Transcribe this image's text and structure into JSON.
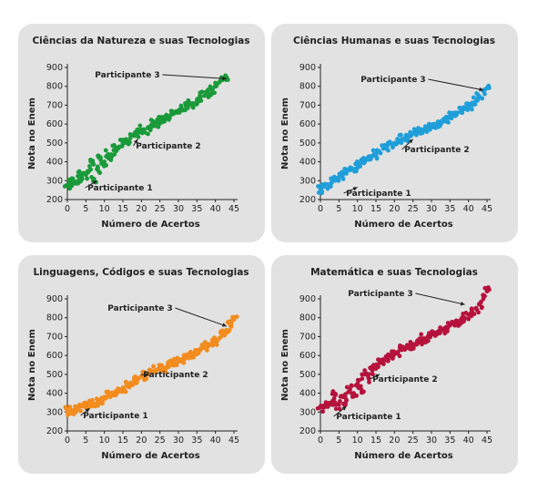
{
  "chart_data": [
    {
      "type": "scatter",
      "title": "Ciências da Natureza e suas Tecnologias",
      "xlabel": "Número de Acertos",
      "ylabel": "Nota no Enem",
      "xlim": [
        0,
        45
      ],
      "ylim": [
        200,
        900
      ],
      "xticks": [
        "0",
        "5",
        "10",
        "15",
        "20",
        "25",
        "30",
        "35",
        "40",
        "45"
      ],
      "yticks": [
        "200",
        "300",
        "400",
        "500",
        "600",
        "700",
        "800",
        "900"
      ],
      "color": "#1a9a3a",
      "series": [
        {
          "points": [
            [
              0,
              275
            ],
            [
              1,
              285
            ],
            [
              2,
              295
            ],
            [
              3,
              300
            ],
            [
              3,
              345
            ],
            [
              4,
              310
            ],
            [
              5,
              330
            ],
            [
              6,
              355
            ],
            [
              7,
              300
            ],
            [
              7,
              390
            ],
            [
              8,
              360
            ],
            [
              9,
              410
            ],
            [
              10,
              400
            ],
            [
              11,
              440
            ],
            [
              12,
              430
            ],
            [
              13,
              470
            ],
            [
              14,
              480
            ],
            [
              15,
              500
            ],
            [
              16,
              500
            ],
            [
              17,
              525
            ],
            [
              18,
              545
            ],
            [
              19,
              550
            ],
            [
              20,
              570
            ],
            [
              21,
              555
            ],
            [
              22,
              585
            ],
            [
              23,
              600
            ],
            [
              24,
              605
            ],
            [
              25,
              615
            ],
            [
              26,
              625
            ],
            [
              27,
              630
            ],
            [
              28,
              650
            ],
            [
              29,
              660
            ],
            [
              30,
              670
            ],
            [
              31,
              680
            ],
            [
              32,
              695
            ],
            [
              33,
              705
            ],
            [
              34,
              710
            ],
            [
              35,
              725
            ],
            [
              36,
              745
            ],
            [
              37,
              750
            ],
            [
              38,
              765
            ],
            [
              39,
              780
            ],
            [
              40,
              800
            ],
            [
              41,
              820
            ],
            [
              42,
              835
            ],
            [
              43,
              848
            ]
          ]
        }
      ],
      "annotations": [
        {
          "label": "Participante 1",
          "x": 8,
          "y": 300
        },
        {
          "label": "Participante 2",
          "x": 19,
          "y": 520
        },
        {
          "label": "Participante 3",
          "x": 43,
          "y": 840
        }
      ]
    },
    {
      "type": "scatter",
      "title": "Ciências Humanas e suas Tecnologias",
      "xlabel": "Número de Acertos",
      "ylabel": "Nota no Enem",
      "xlim": [
        0,
        45
      ],
      "ylim": [
        200,
        900
      ],
      "xticks": [
        "0",
        "5",
        "10",
        "15",
        "20",
        "25",
        "30",
        "35",
        "40",
        "45"
      ],
      "yticks": [
        "200",
        "300",
        "400",
        "500",
        "600",
        "700",
        "800",
        "900"
      ],
      "color": "#1f9ed9",
      "series": [
        {
          "points": [
            [
              0,
              255
            ],
            [
              1,
              270
            ],
            [
              2,
              280
            ],
            [
              3,
              290
            ],
            [
              4,
              300
            ],
            [
              5,
              320
            ],
            [
              6,
              330
            ],
            [
              7,
              350
            ],
            [
              8,
              355
            ],
            [
              9,
              360
            ],
            [
              10,
              385
            ],
            [
              11,
              395
            ],
            [
              12,
              400
            ],
            [
              13,
              420
            ],
            [
              14,
              430
            ],
            [
              15,
              440
            ],
            [
              16,
              450
            ],
            [
              17,
              470
            ],
            [
              18,
              480
            ],
            [
              19,
              495
            ],
            [
              20,
              500
            ],
            [
              21,
              510
            ],
            [
              22,
              520
            ],
            [
              23,
              530
            ],
            [
              24,
              540
            ],
            [
              25,
              550
            ],
            [
              26,
              560
            ],
            [
              27,
              565
            ],
            [
              28,
              570
            ],
            [
              29,
              580
            ],
            [
              30,
              590
            ],
            [
              31,
              600
            ],
            [
              32,
              610
            ],
            [
              33,
              620
            ],
            [
              34,
              630
            ],
            [
              35,
              640
            ],
            [
              36,
              650
            ],
            [
              37,
              660
            ],
            [
              38,
              670
            ],
            [
              39,
              680
            ],
            [
              40,
              690
            ],
            [
              41,
              700
            ],
            [
              42,
              720
            ],
            [
              43,
              745
            ],
            [
              44,
              775
            ],
            [
              45,
              790
            ]
          ]
        }
      ],
      "annotations": [
        {
          "label": "Participante 1",
          "x": 10,
          "y": 265
        },
        {
          "label": "Participante 2",
          "x": 25,
          "y": 520
        },
        {
          "label": "Participante 3",
          "x": 44,
          "y": 780
        }
      ]
    },
    {
      "type": "scatter",
      "title": "Linguagens, Códigos e suas Tecnologias",
      "xlabel": "Número de Acertos",
      "ylabel": "Nota no Enem",
      "xlim": [
        0,
        45
      ],
      "ylim": [
        200,
        900
      ],
      "xticks": [
        "0",
        "5",
        "10",
        "15",
        "20",
        "25",
        "30",
        "35",
        "40",
        "45"
      ],
      "yticks": [
        "200",
        "300",
        "400",
        "500",
        "600",
        "700",
        "800",
        "900"
      ],
      "color": "#f28c1e",
      "series": [
        {
          "points": [
            [
              0,
              305
            ],
            [
              1,
              310
            ],
            [
              2,
              315
            ],
            [
              3,
              320
            ],
            [
              4,
              330
            ],
            [
              5,
              330
            ],
            [
              6,
              340
            ],
            [
              7,
              345
            ],
            [
              8,
              350
            ],
            [
              9,
              365
            ],
            [
              10,
              380
            ],
            [
              11,
              390
            ],
            [
              12,
              400
            ],
            [
              13,
              410
            ],
            [
              14,
              420
            ],
            [
              15,
              430
            ],
            [
              16,
              445
            ],
            [
              17,
              455
            ],
            [
              18,
              470
            ],
            [
              19,
              480
            ],
            [
              20,
              490
            ],
            [
              21,
              495
            ],
            [
              22,
              500
            ],
            [
              23,
              510
            ],
            [
              24,
              520
            ],
            [
              25,
              530
            ],
            [
              26,
              535
            ],
            [
              27,
              545
            ],
            [
              28,
              550
            ],
            [
              29,
              560
            ],
            [
              30,
              570
            ],
            [
              31,
              580
            ],
            [
              32,
              590
            ],
            [
              33,
              600
            ],
            [
              34,
              610
            ],
            [
              35,
              620
            ],
            [
              36,
              630
            ],
            [
              37,
              640
            ],
            [
              38,
              650
            ],
            [
              39,
              660
            ],
            [
              40,
              675
            ],
            [
              41,
              690
            ],
            [
              42,
              710
            ],
            [
              43,
              735
            ],
            [
              44,
              760
            ],
            [
              45,
              790
            ]
          ]
        }
      ],
      "annotations": [
        {
          "label": "Participante 1",
          "x": 6,
          "y": 320
        },
        {
          "label": "Participante 2",
          "x": 22,
          "y": 495
        },
        {
          "label": "Participante 3",
          "x": 43,
          "y": 755
        }
      ]
    },
    {
      "type": "scatter",
      "title": "Matemática e suas Tecnologias",
      "xlabel": "Número de Acertos",
      "ylabel": "Nota no Enem",
      "xlim": [
        0,
        45
      ],
      "ylim": [
        200,
        900
      ],
      "xticks": [
        "0",
        "5",
        "10",
        "15",
        "20",
        "25",
        "30",
        "35",
        "40",
        "45"
      ],
      "yticks": [
        "200",
        "300",
        "400",
        "500",
        "600",
        "700",
        "800",
        "900"
      ],
      "color": "#b5123c",
      "series": [
        {
          "points": [
            [
              0,
              325
            ],
            [
              1,
              330
            ],
            [
              2,
              335
            ],
            [
              3,
              340
            ],
            [
              4,
              350
            ],
            [
              4,
              390
            ],
            [
              5,
              340
            ],
            [
              6,
              380
            ],
            [
              7,
              360
            ],
            [
              8,
              420
            ],
            [
              9,
              400
            ],
            [
              10,
              450
            ],
            [
              11,
              420
            ],
            [
              12,
              500
            ],
            [
              13,
              480
            ],
            [
              14,
              520
            ],
            [
              15,
              530
            ],
            [
              16,
              560
            ],
            [
              17,
              560
            ],
            [
              18,
              590
            ],
            [
              19,
              600
            ],
            [
              20,
              610
            ],
            [
              21,
              620
            ],
            [
              22,
              630
            ],
            [
              23,
              640
            ],
            [
              24,
              650
            ],
            [
              25,
              660
            ],
            [
              26,
              670
            ],
            [
              27,
              680
            ],
            [
              28,
              690
            ],
            [
              29,
              700
            ],
            [
              30,
              710
            ],
            [
              31,
              720
            ],
            [
              32,
              730
            ],
            [
              33,
              740
            ],
            [
              34,
              750
            ],
            [
              35,
              760
            ],
            [
              36,
              770
            ],
            [
              37,
              780
            ],
            [
              38,
              790
            ],
            [
              39,
              800
            ],
            [
              40,
              815
            ],
            [
              41,
              830
            ],
            [
              42,
              850
            ],
            [
              43,
              870
            ],
            [
              44,
              900
            ],
            [
              45,
              940
            ]
          ]
        }
      ],
      "annotations": [
        {
          "label": "Participante 1",
          "x": 7,
          "y": 330
        },
        {
          "label": "Participante 2",
          "x": 16,
          "y": 500
        },
        {
          "label": "Participante 3",
          "x": 39,
          "y": 870
        }
      ]
    }
  ]
}
